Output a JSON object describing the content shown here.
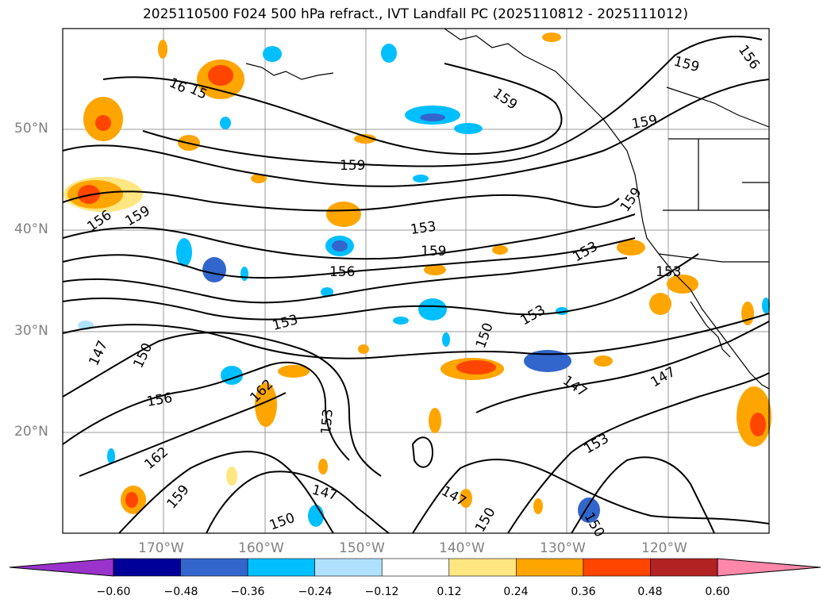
{
  "title": "2025110500 F024 500 hPa refract., IVT Landfall PC (2025110812 - 2025111012)",
  "lat_labels": [
    "50°N",
    "40°N",
    "30°N",
    "20°N"
  ],
  "lon_labels": [
    "170°W",
    "160°W",
    "150°W",
    "140°W",
    "130°W",
    "120°W"
  ],
  "contour_labels": [
    "159",
    "156",
    "16",
    "159",
    "159",
    "159",
    "159",
    "153",
    "159",
    "156",
    "159",
    "156",
    "153",
    "153",
    "153",
    "153",
    "150",
    "147",
    "150",
    "156",
    "162",
    "153",
    "147",
    "147",
    "162",
    "159",
    "147",
    "150",
    "153",
    "150",
    "147",
    "150",
    "15"
  ],
  "colorbar": {
    "ticks": [
      "−0.60",
      "−0.48",
      "−0.36",
      "−0.24",
      "−0.12",
      "0.12",
      "0.24",
      "0.36",
      "0.48",
      "0.60"
    ],
    "colors": [
      "#9933cc",
      "#000099",
      "#3366cc",
      "#00bfff",
      "#b0e2ff",
      "#ffffff",
      "#ffe680",
      "#ffa500",
      "#ff4500",
      "#b22222",
      "#ff88aa",
      "#ff88aa"
    ],
    "under_color": "#9933cc",
    "over_color": "#ff88aa"
  },
  "colors": {
    "contour": "#000000",
    "grid": "#999999",
    "coast": "#000000"
  }
}
